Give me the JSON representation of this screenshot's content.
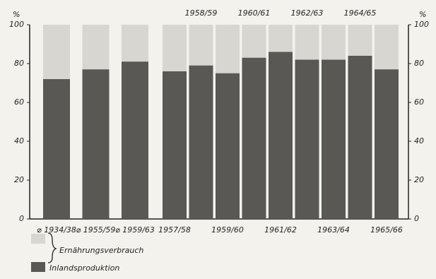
{
  "chart_data": {
    "type": "bar",
    "y_label": "%",
    "y2_label": "%",
    "categories": [
      "⌀ 1934/38",
      "⌀ 1955/59",
      "⌀ 1959/63",
      "1957/58",
      "1958/59",
      "1959/60",
      "1960/61",
      "1961/62",
      "1962/63",
      "1963/64",
      "1964/65",
      "1965/66"
    ],
    "series": [
      {
        "name": "Ernährungsverbrauch",
        "color": "#d8d6d0",
        "values": [
          100,
          100,
          100,
          100,
          100,
          100,
          100,
          100,
          100,
          100,
          100,
          100
        ]
      },
      {
        "name": "Inlandsproduktion",
        "color": "#5a5855",
        "values": [
          72,
          77,
          81,
          76,
          79,
          75,
          83,
          86,
          82,
          82,
          84,
          77
        ]
      }
    ],
    "ylim": [
      0,
      100
    ],
    "yticks": [
      0,
      20,
      40,
      60,
      80,
      100
    ],
    "y2lim": [
      0,
      100
    ],
    "y2ticks": [
      0,
      20,
      40,
      60,
      80,
      100
    ]
  }
}
